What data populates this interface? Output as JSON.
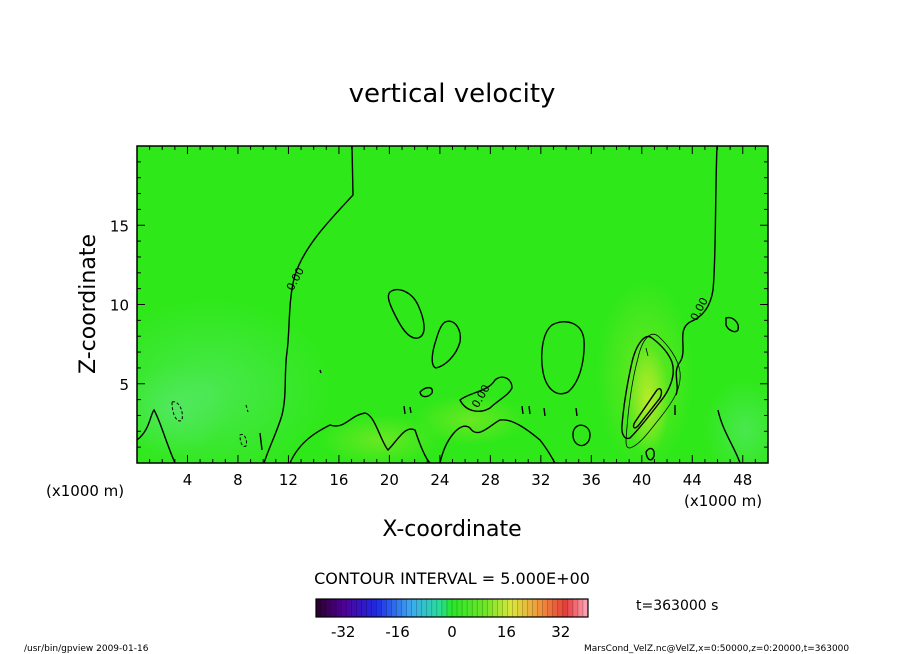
{
  "chart_data": {
    "type": "heatmap",
    "title": "vertical velocity",
    "xlabel": "X-coordinate",
    "ylabel": "Z-coordinate",
    "x_unit_left": "(x1000 m)",
    "x_unit_right": "(x1000 m)",
    "xlim": [
      0,
      50
    ],
    "ylim": [
      0,
      20
    ],
    "x_ticks": [
      "4",
      "8",
      "12",
      "16",
      "20",
      "24",
      "28",
      "32",
      "36",
      "40",
      "44",
      "48"
    ],
    "x_tick_values": [
      4,
      8,
      12,
      16,
      20,
      24,
      28,
      32,
      36,
      40,
      44,
      48
    ],
    "y_ticks": [
      "5",
      "10",
      "15"
    ],
    "y_tick_values": [
      5,
      10,
      15
    ],
    "contour_interval_label": "CONTOUR INTERVAL = 5.000E+00",
    "contour_labels": [
      {
        "text": "0.00",
        "x": 12.8,
        "y": 11.5,
        "angle": -62
      },
      {
        "text": "0.00",
        "x": 27.5,
        "y": 4.1,
        "angle": -60
      },
      {
        "text": "0.00",
        "x": 44.8,
        "y": 9.6,
        "angle": -62
      }
    ],
    "colorbar": {
      "range": [
        -40,
        40
      ],
      "tick_labels": [
        "-32",
        "-16",
        "0",
        "16",
        "32"
      ],
      "tick_values": [
        -32,
        -16,
        0,
        16,
        32
      ]
    },
    "time_label": "t=363000 s",
    "grid": false
  },
  "footer": {
    "left": "/usr/bin/gpview  2009-01-16",
    "right": "MarsCond_VelZ.nc@VelZ,x=0:50000,z=0:20000,t=363000"
  },
  "colors": {
    "background_field": "#2fe81a",
    "frame": "#000000"
  }
}
